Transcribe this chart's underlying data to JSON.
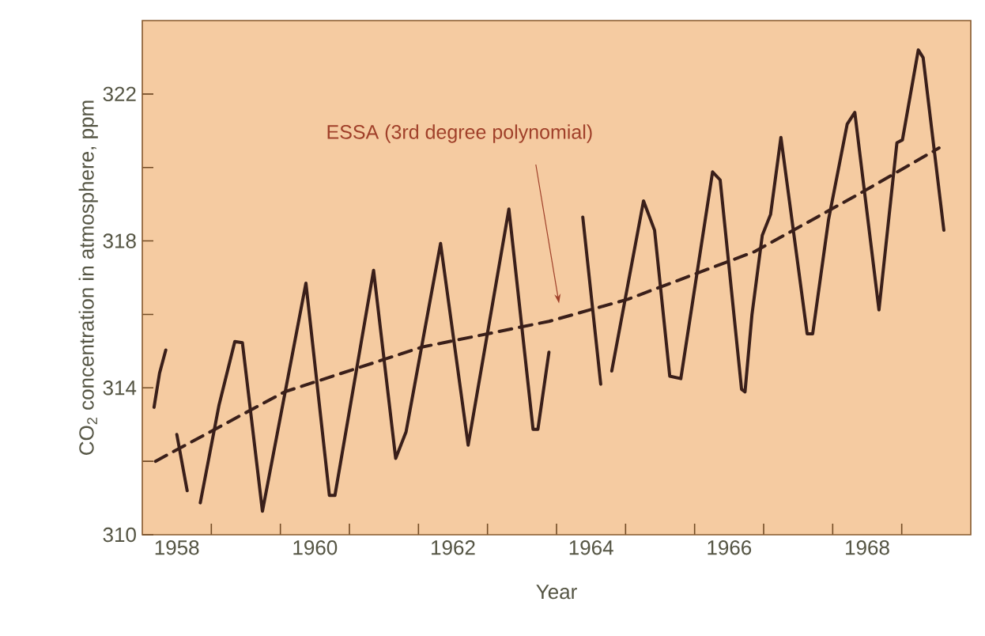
{
  "chart_data": {
    "type": "line",
    "xlabel": "Year",
    "ylabel": "CO$_{2}$ concentration in atmosphere, ppm",
    "xlim": [
      1958,
      1970
    ],
    "ylim": [
      310,
      324
    ],
    "xticks": [
      {
        "value": 1958.5,
        "label": "1958"
      },
      {
        "value": 1960.5,
        "label": "1960"
      },
      {
        "value": 1962.5,
        "label": "1962"
      },
      {
        "value": 1964.5,
        "label": "1964"
      },
      {
        "value": 1966.5,
        "label": "1966"
      },
      {
        "value": 1968.5,
        "label": "1968"
      },
      {
        "value": 1959,
        "label": null
      },
      {
        "value": 1960,
        "label": null
      },
      {
        "value": 1961,
        "label": null
      },
      {
        "value": 1962,
        "label": null
      },
      {
        "value": 1963,
        "label": null
      },
      {
        "value": 1964,
        "label": null
      },
      {
        "value": 1965,
        "label": null
      },
      {
        "value": 1966,
        "label": null
      },
      {
        "value": 1967,
        "label": null
      },
      {
        "value": 1968,
        "label": null
      },
      {
        "value": 1969,
        "label": null
      }
    ],
    "yticks": [
      310,
      {
        "value": 312,
        "label": null
      },
      314,
      {
        "value": 316,
        "label": null
      },
      318,
      {
        "value": 320,
        "label": null
      },
      322
    ],
    "grid": false,
    "marker": "none",
    "series": [
      {
        "color": "#3a1f1a",
        "line_style": "solid",
        "x": [
          1958.17,
          1958.25,
          1958.34,
          1958.42,
          1958.5,
          1958.65,
          1958.75,
          1958.84,
          1959.11,
          1959.34,
          1959.45,
          1959.74,
          1960.37,
          1960.71,
          1960.79,
          1961.35,
          1961.67,
          1961.82,
          1962.32,
          1962.72,
          1963.31,
          1963.66,
          1963.73,
          1963.89,
          1964.1,
          1964.38,
          1964.64,
          1964.72,
          1964.8,
          1965.26,
          1965.42,
          1965.64,
          1965.8,
          1966.26,
          1966.37,
          1966.68,
          1966.73,
          1966.83,
          1966.98,
          1967.1,
          1967.25,
          1967.63,
          1967.71,
          1967.94,
          1968.21,
          1968.32,
          1968.67,
          1968.93,
          1969.01,
          1969.24,
          1969.31,
          1969.61
        ],
        "values": [
          313.47,
          314.4,
          315.03,
          null,
          312.73,
          311.2,
          null,
          310.87,
          313.52,
          315.26,
          315.23,
          310.64,
          316.85,
          311.07,
          311.07,
          317.2,
          312.08,
          312.8,
          317.93,
          312.44,
          318.87,
          312.87,
          312.87,
          314.97,
          null,
          318.65,
          314.1,
          null,
          314.46,
          319.09,
          318.29,
          314.32,
          314.25,
          319.88,
          319.66,
          313.96,
          313.89,
          315.98,
          318.15,
          318.72,
          320.82,
          315.47,
          315.47,
          318.58,
          321.18,
          321.5,
          316.12,
          320.67,
          320.75,
          323.2,
          322.99,
          318.29
        ]
      },
      {
        "color": "#3a1f1a",
        "line_style": "dashed",
        "x": [
          1958.19,
          1960.06,
          1962.05,
          1963.89,
          1965.03,
          1966.87,
          1968.4,
          1969.54
        ],
        "values": [
          312.0,
          313.89,
          315.11,
          315.81,
          316.41,
          317.71,
          319.3,
          320.53
        ]
      }
    ],
    "annotations": [
      "ESSA (3rd degree polynomial)"
    ]
  }
}
